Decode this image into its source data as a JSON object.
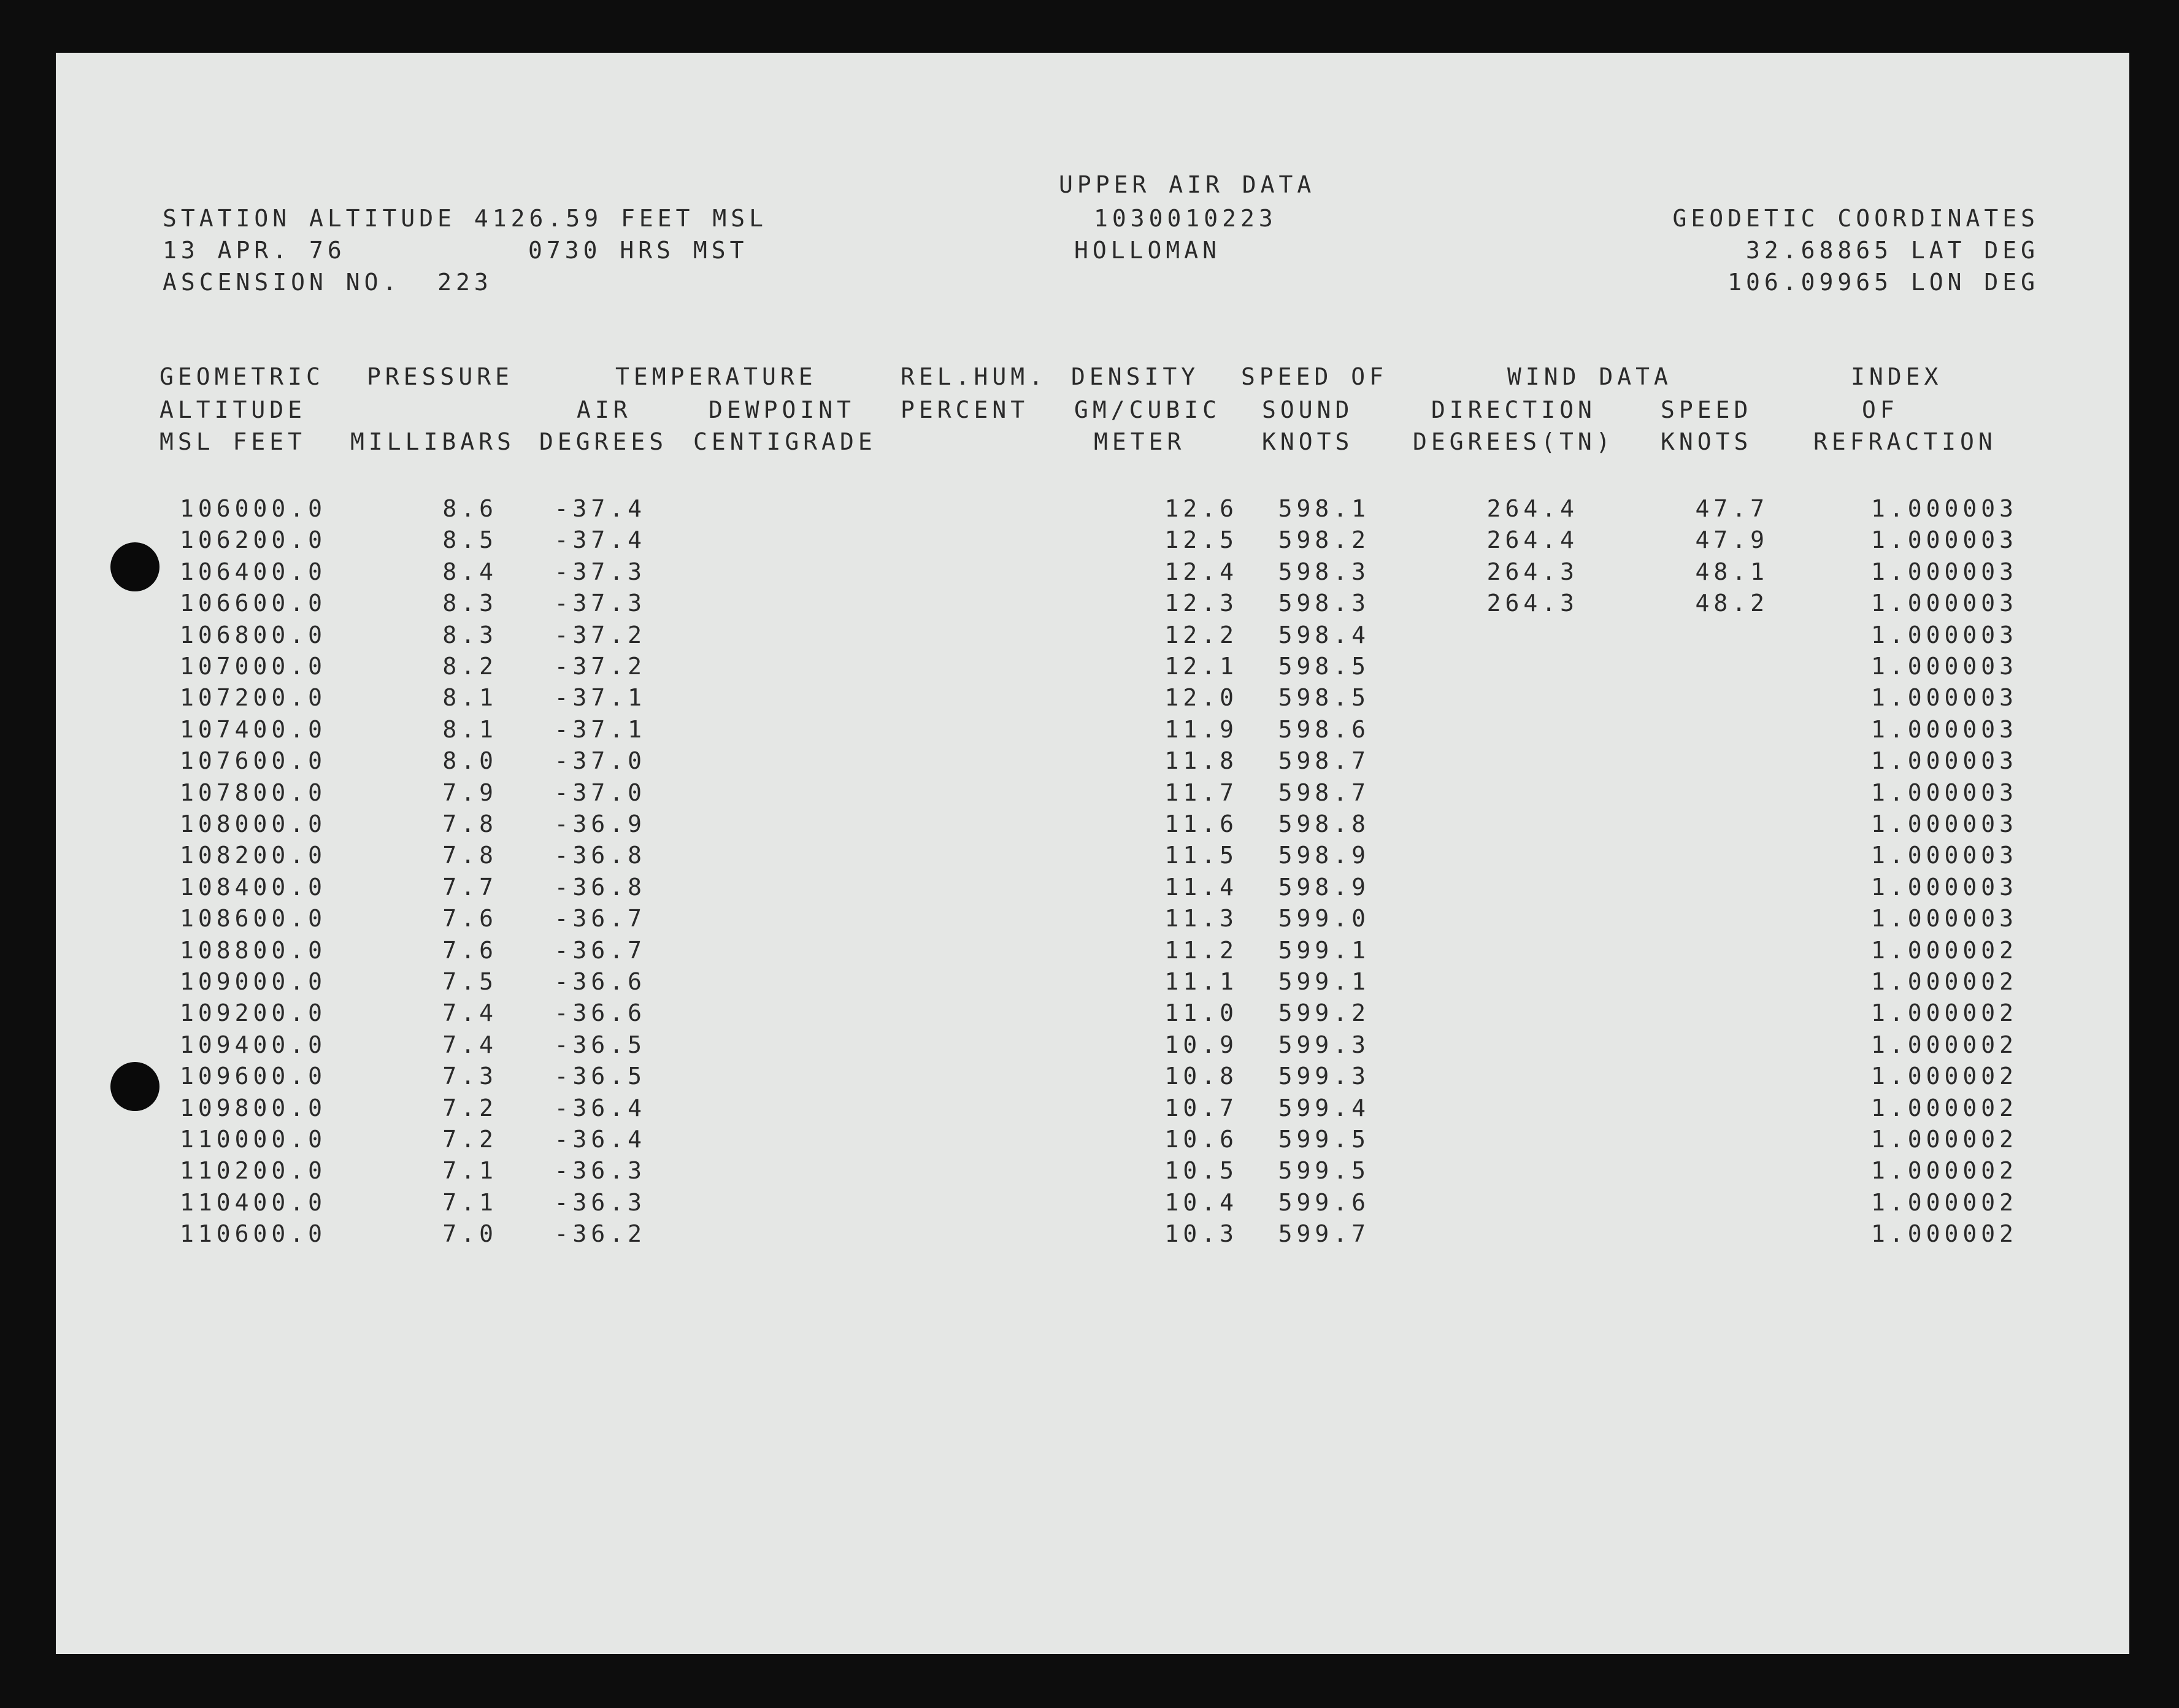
{
  "header": {
    "title": "UPPER AIR DATA",
    "id_number": "1030010223",
    "station": "HOLLOMAN",
    "station_altitude": "STATION ALTITUDE 4126.59 FEET MSL",
    "date": "13 APR. 76",
    "time": "0730 HRS MST",
    "ascension": "ASCENSION NO.  223",
    "coordinates_label": "GEODETIC COORDINATES",
    "latitude": "32.68865 LAT DEG",
    "longitude": "106.09965 LON DEG"
  },
  "columns": {
    "geometric": [
      "GEOMETRIC",
      "ALTITUDE",
      "MSL FEET"
    ],
    "pressure": [
      "PRESSURE",
      "",
      "MILLIBARS"
    ],
    "temperature": "TEMPERATURE",
    "air": [
      "AIR",
      "DEGREES"
    ],
    "dewpoint": [
      "DEWPOINT",
      "CENTIGRADE"
    ],
    "rel_hum": [
      "REL.HUM.",
      "PERCENT"
    ],
    "density": [
      "DENSITY",
      "GM/CUBIC",
      "METER"
    ],
    "sound": [
      "SPEED OF",
      "SOUND",
      "KNOTS"
    ],
    "wind": "WIND DATA",
    "direction": [
      "DIRECTION",
      "DEGREES(TN)"
    ],
    "speed": [
      "SPEED",
      "KNOTS"
    ],
    "index": [
      "INDEX",
      "OF",
      "REFRACTION"
    ]
  },
  "rows": [
    {
      "alt": "106000.0",
      "p": "8.6",
      "t": "-37.4",
      "d": "12.6",
      "s": "598.1",
      "dir": "264.4",
      "spd": "47.7",
      "n": "1.000003"
    },
    {
      "alt": "106200.0",
      "p": "8.5",
      "t": "-37.4",
      "d": "12.5",
      "s": "598.2",
      "dir": "264.4",
      "spd": "47.9",
      "n": "1.000003"
    },
    {
      "alt": "106400.0",
      "p": "8.4",
      "t": "-37.3",
      "d": "12.4",
      "s": "598.3",
      "dir": "264.3",
      "spd": "48.1",
      "n": "1.000003"
    },
    {
      "alt": "106600.0",
      "p": "8.3",
      "t": "-37.3",
      "d": "12.3",
      "s": "598.3",
      "dir": "264.3",
      "spd": "48.2",
      "n": "1.000003"
    },
    {
      "alt": "106800.0",
      "p": "8.3",
      "t": "-37.2",
      "d": "12.2",
      "s": "598.4",
      "dir": "",
      "spd": "",
      "n": "1.000003"
    },
    {
      "alt": "107000.0",
      "p": "8.2",
      "t": "-37.2",
      "d": "12.1",
      "s": "598.5",
      "dir": "",
      "spd": "",
      "n": "1.000003"
    },
    {
      "alt": "107200.0",
      "p": "8.1",
      "t": "-37.1",
      "d": "12.0",
      "s": "598.5",
      "dir": "",
      "spd": "",
      "n": "1.000003"
    },
    {
      "alt": "107400.0",
      "p": "8.1",
      "t": "-37.1",
      "d": "11.9",
      "s": "598.6",
      "dir": "",
      "spd": "",
      "n": "1.000003"
    },
    {
      "alt": "107600.0",
      "p": "8.0",
      "t": "-37.0",
      "d": "11.8",
      "s": "598.7",
      "dir": "",
      "spd": "",
      "n": "1.000003"
    },
    {
      "alt": "107800.0",
      "p": "7.9",
      "t": "-37.0",
      "d": "11.7",
      "s": "598.7",
      "dir": "",
      "spd": "",
      "n": "1.000003"
    },
    {
      "alt": "108000.0",
      "p": "7.8",
      "t": "-36.9",
      "d": "11.6",
      "s": "598.8",
      "dir": "",
      "spd": "",
      "n": "1.000003"
    },
    {
      "alt": "108200.0",
      "p": "7.8",
      "t": "-36.8",
      "d": "11.5",
      "s": "598.9",
      "dir": "",
      "spd": "",
      "n": "1.000003"
    },
    {
      "alt": "108400.0",
      "p": "7.7",
      "t": "-36.8",
      "d": "11.4",
      "s": "598.9",
      "dir": "",
      "spd": "",
      "n": "1.000003"
    },
    {
      "alt": "108600.0",
      "p": "7.6",
      "t": "-36.7",
      "d": "11.3",
      "s": "599.0",
      "dir": "",
      "spd": "",
      "n": "1.000003"
    },
    {
      "alt": "108800.0",
      "p": "7.6",
      "t": "-36.7",
      "d": "11.2",
      "s": "599.1",
      "dir": "",
      "spd": "",
      "n": "1.000002"
    },
    {
      "alt": "109000.0",
      "p": "7.5",
      "t": "-36.6",
      "d": "11.1",
      "s": "599.1",
      "dir": "",
      "spd": "",
      "n": "1.000002"
    },
    {
      "alt": "109200.0",
      "p": "7.4",
      "t": "-36.6",
      "d": "11.0",
      "s": "599.2",
      "dir": "",
      "spd": "",
      "n": "1.000002"
    },
    {
      "alt": "109400.0",
      "p": "7.4",
      "t": "-36.5",
      "d": "10.9",
      "s": "599.3",
      "dir": "",
      "spd": "",
      "n": "1.000002"
    },
    {
      "alt": "109600.0",
      "p": "7.3",
      "t": "-36.5",
      "d": "10.8",
      "s": "599.3",
      "dir": "",
      "spd": "",
      "n": "1.000002"
    },
    {
      "alt": "109800.0",
      "p": "7.2",
      "t": "-36.4",
      "d": "10.7",
      "s": "599.4",
      "dir": "",
      "spd": "",
      "n": "1.000002"
    },
    {
      "alt": "110000.0",
      "p": "7.2",
      "t": "-36.4",
      "d": "10.6",
      "s": "599.5",
      "dir": "",
      "spd": "",
      "n": "1.000002"
    },
    {
      "alt": "110200.0",
      "p": "7.1",
      "t": "-36.3",
      "d": "10.5",
      "s": "599.5",
      "dir": "",
      "spd": "",
      "n": "1.000002"
    },
    {
      "alt": "110400.0",
      "p": "7.1",
      "t": "-36.3",
      "d": "10.4",
      "s": "599.6",
      "dir": "",
      "spd": "",
      "n": "1.000002"
    },
    {
      "alt": "110600.0",
      "p": "7.0",
      "t": "-36.2",
      "d": "10.3",
      "s": "599.7",
      "dir": "",
      "spd": "",
      "n": "1.000002"
    }
  ]
}
